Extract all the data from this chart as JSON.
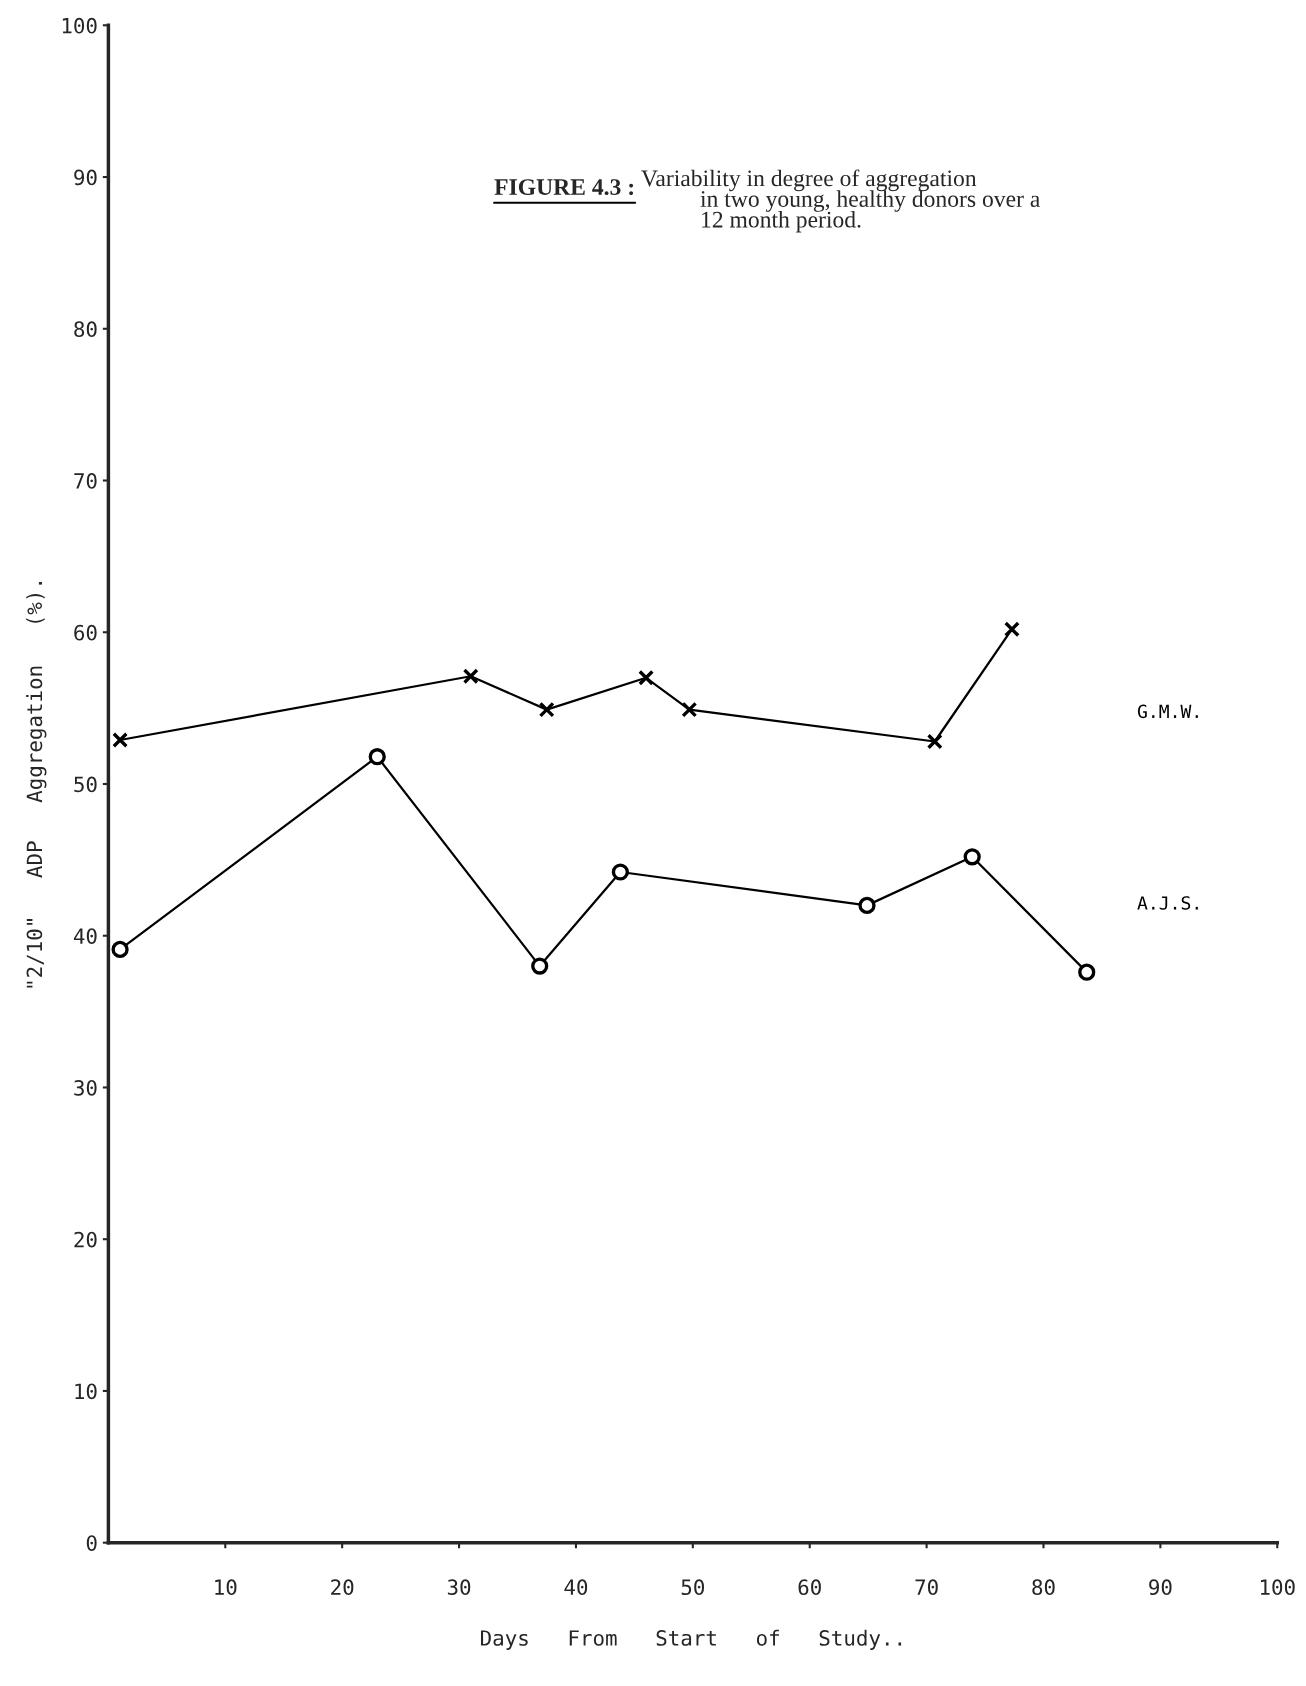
{
  "chart_data": {
    "type": "line",
    "title": "FIGURE 4.3 :",
    "subtitle": "Variability in degree of aggregation\n          in two young, healthy donors over a\n          12 month period.",
    "xlabel": "Days   From   Start   of   Study..",
    "ylabel": "\"2/10\"   ADP   Aggregation   (%).",
    "xlim": [
      0,
      100
    ],
    "ylim": [
      0,
      100
    ],
    "xticks": [
      10,
      20,
      30,
      40,
      50,
      60,
      70,
      80,
      90,
      100
    ],
    "yticks": [
      0,
      10,
      20,
      30,
      40,
      50,
      60,
      70,
      80,
      90,
      100
    ],
    "grid": false,
    "legend": false,
    "series": [
      {
        "name": "G.M.W.",
        "color": "#000000",
        "marker": "cross",
        "x": [
          1,
          31,
          37.5,
          46,
          49.7,
          70.7,
          77.3
        ],
        "values": [
          52.9,
          57.1,
          54.9,
          57.0,
          54.9,
          52.8,
          60.2
        ]
      },
      {
        "name": "A.J.S.",
        "color": "#000000",
        "marker": "circle",
        "x": [
          1,
          23,
          36.9,
          43.8,
          64.9,
          73.9,
          83.7
        ],
        "values": [
          39.1,
          51.8,
          38.0,
          44.2,
          42.0,
          45.2,
          37.6
        ]
      }
    ]
  }
}
